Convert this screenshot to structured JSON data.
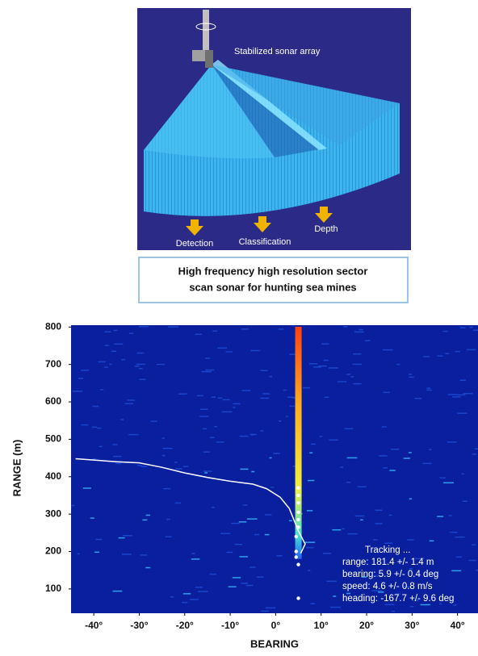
{
  "figure": {
    "diagram": {
      "array_label": "Stabilized sonar array",
      "sectors": [
        "Detection",
        "Classification",
        "Depth"
      ]
    },
    "caption": [
      "High frequency high resolution sector",
      "scan sonar for hunting sea mines"
    ]
  },
  "chart_data": {
    "type": "sonar",
    "xlabel": "BEARING",
    "ylabel": "RANGE (m)",
    "xlim": [
      -45,
      44.5
    ],
    "ylim": [
      35,
      805
    ],
    "xticks": [
      {
        "value": -40,
        "label": "-40°"
      },
      {
        "value": -30,
        "label": "-30°"
      },
      {
        "value": -20,
        "label": "-20°"
      },
      {
        "value": -10,
        "label": "-10°"
      },
      {
        "value": 0,
        "label": "0°"
      },
      {
        "value": 10,
        "label": "10°"
      },
      {
        "value": 20,
        "label": "20°"
      },
      {
        "value": 30,
        "label": "30°"
      },
      {
        "value": 40,
        "label": "40°"
      }
    ],
    "yticks": [
      100,
      200,
      300,
      400,
      500,
      600,
      700,
      800
    ],
    "track": {
      "color": "#ffffff",
      "x": [
        -44,
        -35,
        -30,
        -25,
        -20,
        -15,
        -10,
        -5,
        -2,
        1,
        3,
        4,
        5,
        6.5,
        5.5
      ],
      "y": [
        448,
        440,
        437,
        425,
        410,
        398,
        388,
        380,
        368,
        345,
        315,
        285,
        255,
        220,
        195
      ]
    },
    "detections": {
      "color": "#ffffff",
      "x": [
        5,
        5,
        5,
        5,
        5,
        5,
        4.5,
        4.5,
        4.5,
        5,
        5
      ],
      "y": [
        370,
        350,
        330,
        305,
        285,
        265,
        240,
        200,
        185,
        165,
        75
      ]
    },
    "annotation": [
      "Tracking ...",
      "range: 181.4 +/- 1.4 m",
      "bearing: 5.9 +/- 0.4 deg",
      "speed: 4.6 +/- 0.8 m/s",
      "heading: -167.7 +/- 9.6 deg"
    ]
  }
}
